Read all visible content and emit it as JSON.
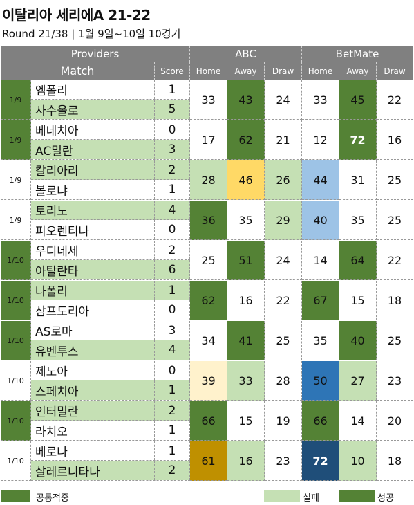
{
  "title": "이탈리아 세리에A 21-22",
  "subtitle": "Round 21/38 | 1월 9일~10일 10경기",
  "header": {
    "providers": "Providers",
    "match": "Match",
    "score": "Score",
    "provider1": "ABC",
    "provider2": "BetMate",
    "home": "Home",
    "away": "Away",
    "draw": "Draw"
  },
  "colors": {
    "dark_green": "#548235",
    "light_green": "#c5e0b4",
    "gold": "#ffd966",
    "light_yellow": "#fff2cc",
    "light_blue": "#9dc3e6",
    "dark_gold": "#bf9000",
    "navy": "#1f4e79",
    "header_gray": "#808080"
  },
  "matches": [
    {
      "date": "1/9",
      "date_color": "#548235",
      "home": "엠폴리",
      "home_score": "1",
      "home_color": "#ffffff",
      "away": "사수올로",
      "away_score": "5",
      "away_color": "#c5e0b4",
      "abc": [
        {
          "v": "33",
          "c": "#ffffff",
          "t": "#111"
        },
        {
          "v": "43",
          "c": "#548235",
          "t": "#111"
        },
        {
          "v": "24",
          "c": "#ffffff",
          "t": "#111"
        }
      ],
      "bm": [
        {
          "v": "33",
          "c": "#ffffff",
          "t": "#111"
        },
        {
          "v": "45",
          "c": "#548235",
          "t": "#111"
        },
        {
          "v": "22",
          "c": "#ffffff",
          "t": "#111"
        }
      ]
    },
    {
      "date": "1/9",
      "date_color": "#548235",
      "home": "베네치아",
      "home_score": "0",
      "home_color": "#ffffff",
      "away": "AC밀란",
      "away_score": "3",
      "away_color": "#c5e0b4",
      "abc": [
        {
          "v": "17",
          "c": "#ffffff",
          "t": "#111"
        },
        {
          "v": "62",
          "c": "#548235",
          "t": "#111"
        },
        {
          "v": "21",
          "c": "#ffffff",
          "t": "#111"
        }
      ],
      "bm": [
        {
          "v": "12",
          "c": "#ffffff",
          "t": "#111"
        },
        {
          "v": "72",
          "c": "#548235",
          "t": "#ffffff"
        },
        {
          "v": "16",
          "c": "#ffffff",
          "t": "#111"
        }
      ]
    },
    {
      "date": "1/9",
      "date_color": "#ffffff",
      "home": "칼리아리",
      "home_score": "2",
      "home_color": "#c5e0b4",
      "away": "볼로냐",
      "away_score": "1",
      "away_color": "#ffffff",
      "abc": [
        {
          "v": "28",
          "c": "#c5e0b4",
          "t": "#111"
        },
        {
          "v": "46",
          "c": "#ffd966",
          "t": "#111"
        },
        {
          "v": "26",
          "c": "#c5e0b4",
          "t": "#111"
        }
      ],
      "bm": [
        {
          "v": "44",
          "c": "#9dc3e6",
          "t": "#111"
        },
        {
          "v": "31",
          "c": "#ffffff",
          "t": "#111"
        },
        {
          "v": "25",
          "c": "#ffffff",
          "t": "#111"
        }
      ]
    },
    {
      "date": "1/9",
      "date_color": "#ffffff",
      "home": "토리노",
      "home_score": "4",
      "home_color": "#c5e0b4",
      "away": "피오렌티나",
      "away_score": "0",
      "away_color": "#ffffff",
      "abc": [
        {
          "v": "36",
          "c": "#548235",
          "t": "#111"
        },
        {
          "v": "35",
          "c": "#ffffff",
          "t": "#111"
        },
        {
          "v": "29",
          "c": "#c5e0b4",
          "t": "#111"
        }
      ],
      "bm": [
        {
          "v": "40",
          "c": "#9dc3e6",
          "t": "#111"
        },
        {
          "v": "35",
          "c": "#ffffff",
          "t": "#111"
        },
        {
          "v": "25",
          "c": "#ffffff",
          "t": "#111"
        }
      ]
    },
    {
      "date": "1/10",
      "date_color": "#548235",
      "home": "우디네세",
      "home_score": "2",
      "home_color": "#ffffff",
      "away": "아탈란타",
      "away_score": "6",
      "away_color": "#c5e0b4",
      "abc": [
        {
          "v": "25",
          "c": "#ffffff",
          "t": "#111"
        },
        {
          "v": "51",
          "c": "#548235",
          "t": "#111"
        },
        {
          "v": "24",
          "c": "#ffffff",
          "t": "#111"
        }
      ],
      "bm": [
        {
          "v": "14",
          "c": "#ffffff",
          "t": "#111"
        },
        {
          "v": "64",
          "c": "#548235",
          "t": "#111"
        },
        {
          "v": "22",
          "c": "#ffffff",
          "t": "#111"
        }
      ]
    },
    {
      "date": "1/10",
      "date_color": "#548235",
      "home": "나폴리",
      "home_score": "1",
      "home_color": "#c5e0b4",
      "away": "삼프도리아",
      "away_score": "0",
      "away_color": "#ffffff",
      "abc": [
        {
          "v": "62",
          "c": "#548235",
          "t": "#111"
        },
        {
          "v": "16",
          "c": "#ffffff",
          "t": "#111"
        },
        {
          "v": "22",
          "c": "#ffffff",
          "t": "#111"
        }
      ],
      "bm": [
        {
          "v": "67",
          "c": "#548235",
          "t": "#111"
        },
        {
          "v": "15",
          "c": "#ffffff",
          "t": "#111"
        },
        {
          "v": "18",
          "c": "#ffffff",
          "t": "#111"
        }
      ]
    },
    {
      "date": "1/10",
      "date_color": "#548235",
      "home": "AS로마",
      "home_score": "3",
      "home_color": "#ffffff",
      "away": "유벤투스",
      "away_score": "4",
      "away_color": "#c5e0b4",
      "abc": [
        {
          "v": "34",
          "c": "#ffffff",
          "t": "#111"
        },
        {
          "v": "41",
          "c": "#548235",
          "t": "#111"
        },
        {
          "v": "25",
          "c": "#ffffff",
          "t": "#111"
        }
      ],
      "bm": [
        {
          "v": "35",
          "c": "#ffffff",
          "t": "#111"
        },
        {
          "v": "40",
          "c": "#548235",
          "t": "#111"
        },
        {
          "v": "25",
          "c": "#ffffff",
          "t": "#111"
        }
      ]
    },
    {
      "date": "1/10",
      "date_color": "#ffffff",
      "home": "제노아",
      "home_score": "0",
      "home_color": "#ffffff",
      "away": "스페치아",
      "away_score": "1",
      "away_color": "#c5e0b4",
      "abc": [
        {
          "v": "39",
          "c": "#fff2cc",
          "t": "#111"
        },
        {
          "v": "33",
          "c": "#c5e0b4",
          "t": "#111"
        },
        {
          "v": "28",
          "c": "#ffffff",
          "t": "#111"
        }
      ],
      "bm": [
        {
          "v": "50",
          "c": "#2e75b6",
          "t": "#111"
        },
        {
          "v": "27",
          "c": "#c5e0b4",
          "t": "#111"
        },
        {
          "v": "23",
          "c": "#ffffff",
          "t": "#111"
        }
      ]
    },
    {
      "date": "1/10",
      "date_color": "#548235",
      "home": "인터밀란",
      "home_score": "2",
      "home_color": "#c5e0b4",
      "away": "라치오",
      "away_score": "1",
      "away_color": "#ffffff",
      "abc": [
        {
          "v": "66",
          "c": "#548235",
          "t": "#111"
        },
        {
          "v": "15",
          "c": "#ffffff",
          "t": "#111"
        },
        {
          "v": "19",
          "c": "#ffffff",
          "t": "#111"
        }
      ],
      "bm": [
        {
          "v": "66",
          "c": "#548235",
          "t": "#111"
        },
        {
          "v": "14",
          "c": "#ffffff",
          "t": "#111"
        },
        {
          "v": "20",
          "c": "#ffffff",
          "t": "#111"
        }
      ]
    },
    {
      "date": "1/10",
      "date_color": "#ffffff",
      "home": "베로나",
      "home_score": "1",
      "home_color": "#ffffff",
      "away": "살레르니타나",
      "away_score": "2",
      "away_color": "#c5e0b4",
      "abc": [
        {
          "v": "61",
          "c": "#bf9000",
          "t": "#111"
        },
        {
          "v": "16",
          "c": "#c5e0b4",
          "t": "#111"
        },
        {
          "v": "23",
          "c": "#ffffff",
          "t": "#111"
        }
      ],
      "bm": [
        {
          "v": "72",
          "c": "#1f4e79",
          "t": "#ffffff"
        },
        {
          "v": "10",
          "c": "#c5e0b4",
          "t": "#111"
        },
        {
          "v": "18",
          "c": "#ffffff",
          "t": "#111"
        }
      ]
    }
  ],
  "legend": {
    "common_hit": "공통적중",
    "fail": "실패",
    "success": "성공"
  }
}
